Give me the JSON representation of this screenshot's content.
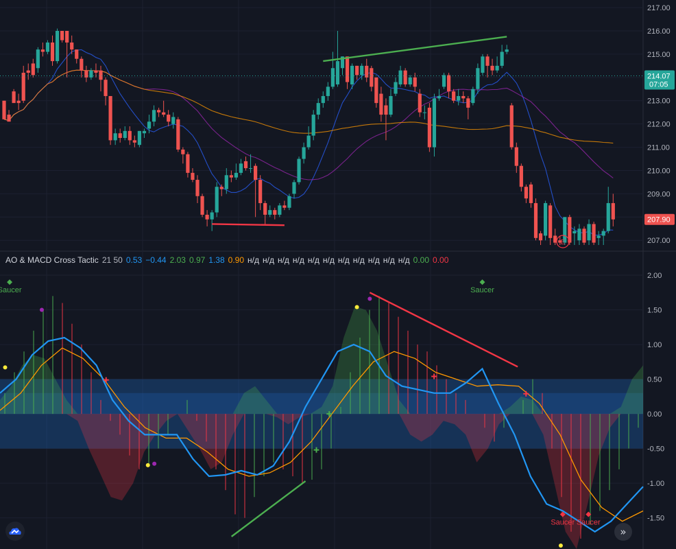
{
  "chart_data": [
    {
      "type": "candlestick",
      "price_axis": {
        "ticks": [
          "217.00",
          "216.00",
          "215.00",
          "214.00",
          "213.00",
          "212.00",
          "211.00",
          "210.00",
          "209.00",
          "208.00",
          "207.00"
        ],
        "range": [
          206.8,
          217.15
        ]
      },
      "last_price_label": {
        "price": "214.07",
        "time": "07:05"
      },
      "current_price_label": "207.90",
      "earnings_marker": "E",
      "candles": [
        [
          213.0,
          212.2,
          213.0,
          212.4
        ],
        [
          212.4,
          212.1,
          212.6,
          212.3
        ],
        [
          213.4,
          212.9,
          213.5,
          213.0
        ],
        [
          213.0,
          212.9,
          213.3,
          212.6
        ],
        [
          214.2,
          213.0,
          214.5,
          212.9
        ],
        [
          214.3,
          214.2,
          214.6,
          213.9
        ],
        [
          214.6,
          214.1,
          214.8,
          214.0
        ],
        [
          214.4,
          215.2,
          215.3,
          214.2
        ],
        [
          215.2,
          215.1,
          215.5,
          214.9
        ],
        [
          215.1,
          215.5,
          215.6,
          215.0
        ],
        [
          215.5,
          214.7,
          215.8,
          214.5
        ],
        [
          214.7,
          216.0,
          216.1,
          214.6
        ],
        [
          216.0,
          215.6,
          216.0,
          215.5
        ],
        [
          216.0,
          215.5,
          216.0,
          214.0
        ],
        [
          215.5,
          215.2,
          215.8,
          215.0
        ],
        [
          215.2,
          214.8,
          215.2,
          214.6
        ],
        [
          214.8,
          214.3,
          214.9,
          214.0
        ],
        [
          214.3,
          214.0,
          214.5,
          213.8
        ],
        [
          214.0,
          214.3,
          214.4,
          213.9
        ],
        [
          214.3,
          214.2,
          214.6,
          214.0
        ],
        [
          214.3,
          213.9,
          214.5,
          213.4
        ],
        [
          213.9,
          213.2,
          214.0,
          212.8
        ],
        [
          213.2,
          211.3,
          213.2,
          211.1
        ],
        [
          211.3,
          211.6,
          211.8,
          211.1
        ],
        [
          211.6,
          211.4,
          211.8,
          211.2
        ],
        [
          211.4,
          211.7,
          211.9,
          211.3
        ],
        [
          211.7,
          211.3,
          211.9,
          211.1
        ],
        [
          211.3,
          211.2,
          211.5,
          211.0
        ],
        [
          211.1,
          211.7,
          211.7,
          211.0
        ],
        [
          211.6,
          211.7,
          211.8,
          211.4
        ],
        [
          211.8,
          212.1,
          212.4,
          211.6
        ],
        [
          212.1,
          212.6,
          212.8,
          211.9
        ],
        [
          212.6,
          212.5,
          212.7,
          212.3
        ],
        [
          212.5,
          212.4,
          213.0,
          212.3
        ],
        [
          212.4,
          212.1,
          212.6,
          211.9
        ],
        [
          212.0,
          212.3,
          212.5,
          211.8
        ],
        [
          212.2,
          210.9,
          212.3,
          210.8
        ],
        [
          210.9,
          210.7,
          211.0,
          210.3
        ],
        [
          210.7,
          209.9,
          210.8,
          209.7
        ],
        [
          209.9,
          209.6,
          210.1,
          209.5
        ],
        [
          209.6,
          208.9,
          209.8,
          208.6
        ],
        [
          208.9,
          208.1,
          209.0,
          208.0
        ],
        [
          208.1,
          207.9,
          208.3,
          207.6
        ],
        [
          207.9,
          208.2,
          208.3,
          207.4
        ],
        [
          208.2,
          209.3,
          209.5,
          208.0
        ],
        [
          209.3,
          209.2,
          209.4,
          208.9
        ],
        [
          209.2,
          209.8,
          210.1,
          209.0
        ],
        [
          209.8,
          209.7,
          210.0,
          209.5
        ],
        [
          209.7,
          209.9,
          210.3,
          209.6
        ],
        [
          209.9,
          210.3,
          210.5,
          209.8
        ],
        [
          210.4,
          210.1,
          210.6,
          210.0
        ],
        [
          210.1,
          210.1,
          210.7,
          209.9
        ],
        [
          210.2,
          209.6,
          210.3,
          208.0
        ],
        [
          209.6,
          208.6,
          209.8,
          208.3
        ],
        [
          208.6,
          208.1,
          208.7,
          207.7
        ],
        [
          208.1,
          208.3,
          208.5,
          208.0
        ],
        [
          208.3,
          208.1,
          208.4,
          207.9
        ],
        [
          208.1,
          208.5,
          208.6,
          208.0
        ],
        [
          208.5,
          208.4,
          208.7,
          208.3
        ],
        [
          208.4,
          208.9,
          209.0,
          208.3
        ],
        [
          209.0,
          209.5,
          209.6,
          208.8
        ],
        [
          209.5,
          210.5,
          210.6,
          209.4
        ],
        [
          210.5,
          211.0,
          211.2,
          210.3
        ],
        [
          211.0,
          211.5,
          211.9,
          210.9
        ],
        [
          211.5,
          212.4,
          212.6,
          211.3
        ],
        [
          212.4,
          212.9,
          213.1,
          212.2
        ],
        [
          212.9,
          213.2,
          213.4,
          212.7
        ],
        [
          213.2,
          213.6,
          213.8,
          213.0
        ],
        [
          213.6,
          214.4,
          215.1,
          213.5
        ],
        [
          213.7,
          214.7,
          216.0,
          213.6
        ],
        [
          214.4,
          214.9,
          214.9,
          214.1
        ],
        [
          214.9,
          213.8,
          214.9,
          213.5
        ],
        [
          213.7,
          214.5,
          214.6,
          213.5
        ],
        [
          214.5,
          214.1,
          214.5,
          213.9
        ],
        [
          214.1,
          214.5,
          214.6,
          213.9
        ],
        [
          214.5,
          214.0,
          214.8,
          213.8
        ],
        [
          214.4,
          213.6,
          214.5,
          213.4
        ],
        [
          214.0,
          212.9,
          214.0,
          212.7
        ],
        [
          213.3,
          212.4,
          213.6,
          212.1
        ],
        [
          212.8,
          212.4,
          213.1,
          211.3
        ],
        [
          212.4,
          213.2,
          213.5,
          212.3
        ],
        [
          213.3,
          213.8,
          214.0,
          213.2
        ],
        [
          213.7,
          214.3,
          214.5,
          213.6
        ],
        [
          214.3,
          213.7,
          214.4,
          213.6
        ],
        [
          213.7,
          214.0,
          214.1,
          213.6
        ],
        [
          214.0,
          213.6,
          214.2,
          213.4
        ],
        [
          213.3,
          212.5,
          213.5,
          212.3
        ],
        [
          212.5,
          212.5,
          212.8,
          212.2
        ],
        [
          212.7,
          211.0,
          212.9,
          210.8
        ],
        [
          211.0,
          213.1,
          213.3,
          210.6
        ],
        [
          213.1,
          213.2,
          213.5,
          213.0
        ],
        [
          213.6,
          214.1,
          214.2,
          213.5
        ],
        [
          214.1,
          213.4,
          214.2,
          213.1
        ],
        [
          213.4,
          213.0,
          213.5,
          212.9
        ],
        [
          213.0,
          213.2,
          213.5,
          212.8
        ],
        [
          213.2,
          213.1,
          213.4,
          212.9
        ],
        [
          213.1,
          212.7,
          213.2,
          212.2
        ],
        [
          212.9,
          213.5,
          213.6,
          212.8
        ],
        [
          213.5,
          214.4,
          214.6,
          213.3
        ],
        [
          214.2,
          214.9,
          215.0,
          214.1
        ],
        [
          214.9,
          214.5,
          215.0,
          214.0
        ],
        [
          214.5,
          214.3,
          214.8,
          214.1
        ],
        [
          214.3,
          214.5,
          214.9,
          214.2
        ],
        [
          214.5,
          215.1,
          215.4,
          214.4
        ],
        [
          215.1,
          215.2,
          215.4,
          215.0
        ],
        [
          212.8,
          211.0,
          212.9,
          210.9
        ],
        [
          211.0,
          210.2,
          211.2,
          209.9
        ],
        [
          210.2,
          209.3,
          210.3,
          209.1
        ],
        [
          209.3,
          208.8,
          209.4,
          208.6
        ],
        [
          209.4,
          208.6,
          209.5,
          208.4
        ],
        [
          208.6,
          207.1,
          208.8,
          207.0
        ],
        [
          207.3,
          207.0,
          207.4,
          206.8
        ],
        [
          207.2,
          208.6,
          208.7,
          207.0
        ],
        [
          208.5,
          207.1,
          208.6,
          206.8
        ],
        [
          207.2,
          206.9,
          207.5,
          206.8
        ],
        [
          207.0,
          206.9,
          207.2,
          206.8
        ],
        [
          206.9,
          208.0,
          208.0,
          206.8
        ],
        [
          208.0,
          206.9,
          208.1,
          206.8
        ],
        [
          207.3,
          207.4,
          207.6,
          206.8
        ],
        [
          207.0,
          207.5,
          207.7,
          206.8
        ],
        [
          207.5,
          206.9,
          207.6,
          206.8
        ],
        [
          207.0,
          207.7,
          207.9,
          206.8
        ],
        [
          207.7,
          206.9,
          207.8,
          206.8
        ],
        [
          207.1,
          207.2,
          207.4,
          206.8
        ],
        [
          207.2,
          207.4,
          207.5,
          206.8
        ],
        [
          207.4,
          208.6,
          209.3,
          207.3
        ],
        [
          208.6,
          207.9,
          209.0,
          207.6
        ]
      ],
      "annotations": [
        {
          "kind": "trendline",
          "color": "#f23645",
          "points": [
            [
              43,
              207.7
            ],
            [
              58,
              207.65
            ]
          ]
        },
        {
          "kind": "trendline",
          "color": "#4caf50",
          "points": [
            [
              66,
              214.7
            ],
            [
              104,
              215.75
            ]
          ]
        }
      ]
    },
    {
      "type": "indicator",
      "title": "AO & MACD Cross Tactic",
      "params": "21 50",
      "legend_values": [
        {
          "text": "0.53",
          "color": "#2196f3"
        },
        {
          "text": "−0.44",
          "color": "#2196f3"
        },
        {
          "text": "2.03",
          "color": "#4caf50"
        },
        {
          "text": "0.97",
          "color": "#4caf50"
        },
        {
          "text": "1.38",
          "color": "#2196f3"
        },
        {
          "text": "0.90",
          "color": "#ff9800"
        },
        {
          "text": "н/д",
          "color": "#d1d4dc"
        },
        {
          "text": "н/д",
          "color": "#d1d4dc"
        },
        {
          "text": "н/д",
          "color": "#d1d4dc"
        },
        {
          "text": "н/д",
          "color": "#d1d4dc"
        },
        {
          "text": "н/д",
          "color": "#d1d4dc"
        },
        {
          "text": "н/д",
          "color": "#d1d4dc"
        },
        {
          "text": "н/д",
          "color": "#d1d4dc"
        },
        {
          "text": "н/д",
          "color": "#d1d4dc"
        },
        {
          "text": "н/д",
          "color": "#d1d4dc"
        },
        {
          "text": "н/д",
          "color": "#d1d4dc"
        },
        {
          "text": "н/д",
          "color": "#d1d4dc"
        },
        {
          "text": "0.00",
          "color": "#4caf50"
        },
        {
          "text": "0.00",
          "color": "#f23645"
        }
      ],
      "value_axis": {
        "ticks": [
          "2.00",
          "1.50",
          "1.00",
          "0.50",
          "0.00",
          "-0.50",
          "-1.00",
          "-1.50"
        ],
        "range": [
          -1.9,
          2.05
        ]
      },
      "bands": [
        {
          "from": -0.5,
          "to": 0.5
        },
        {
          "from": 0.0,
          "to": 0.3
        }
      ],
      "ao_area": [
        0.2,
        0.4,
        0.7,
        0.85,
        0.8,
        0.5,
        0.2,
        -0.1,
        -0.5,
        -0.85,
        -1.2,
        -1.25,
        -1.0,
        -0.55,
        -0.3,
        -0.1,
        0.0,
        -0.25,
        -0.5,
        -0.8,
        -0.7,
        -0.3,
        0.3,
        0.4,
        0.2,
        -0.05,
        -0.15,
        -0.05,
        0.0,
        0.1,
        0.4,
        1.1,
        1.55,
        1.5,
        1.2,
        0.7,
        0.2,
        -0.3,
        -0.4,
        -0.3,
        -0.1,
        -0.15,
        -0.3,
        -0.7,
        -0.5,
        -0.15,
        0.1,
        0.25,
        0.2,
        -0.3,
        -1.0,
        -1.7,
        -1.95,
        -1.3,
        -0.6,
        -0.2,
        0.1,
        0.5,
        0.7
      ],
      "macd": [
        0.3,
        0.5,
        0.85,
        1.05,
        1.1,
        0.95,
        0.7,
        0.2,
        -0.1,
        -0.3,
        -0.3,
        -0.3,
        -0.65,
        -0.9,
        -0.88,
        -0.82,
        -0.88,
        -0.75,
        -0.4,
        0.1,
        0.5,
        0.9,
        1.0,
        0.9,
        0.55,
        0.4,
        0.35,
        0.3,
        0.3,
        0.45,
        0.65,
        0.15,
        -0.3,
        -0.9,
        -1.3,
        -1.4,
        -1.55,
        -1.7,
        -1.55,
        -1.3,
        -1.05
      ],
      "signal": [
        0.05,
        0.3,
        0.7,
        0.95,
        0.8,
        0.5,
        0.1,
        -0.2,
        -0.35,
        -0.35,
        -0.55,
        -0.8,
        -0.9,
        -0.85,
        -0.7,
        -0.4,
        0.0,
        0.4,
        0.75,
        0.9,
        0.8,
        0.6,
        0.5,
        0.4,
        0.42,
        0.4,
        0.15,
        -0.3,
        -0.95,
        -1.35,
        -1.55,
        -1.4
      ],
      "histogram": [
        0.3,
        0.6,
        0.9,
        1.2,
        1.5,
        1.7,
        1.6,
        1.3,
        1.0,
        0.6,
        0.2,
        -0.1,
        -0.3,
        -0.6,
        -0.8,
        -0.75,
        -0.5,
        -0.3,
        0.0,
        0.2,
        -0.1,
        -0.4,
        -0.8,
        -1.1,
        -1.45,
        -1.5,
        -1.2,
        -0.9,
        -0.7,
        -0.8,
        -0.9,
        -1.0,
        -0.95,
        -0.8,
        -0.5,
        0.1,
        0.6,
        1.1,
        1.5,
        1.7,
        1.6,
        1.4,
        1.2,
        1.0,
        0.9,
        0.7,
        0.5,
        0.3,
        0.2,
        0.0,
        -0.2,
        -0.4,
        -0.2,
        0.0,
        0.2,
        0.5,
        0.3,
        -0.5,
        -1.2,
        -1.7,
        -1.8,
        -1.6,
        -1.4,
        -1.1,
        -0.8,
        -0.5,
        -0.2
      ],
      "markers": [
        {
          "kind": "diamond",
          "color": "#4caf50",
          "label": "Saucer",
          "x": 0.015,
          "y": 1.9
        },
        {
          "kind": "diamond",
          "color": "#4caf50",
          "label": "Saucer",
          "x": 0.75,
          "y": 1.9
        },
        {
          "kind": "diamond",
          "color": "#f23645",
          "label": "Saucer",
          "x": 0.875,
          "y": -1.45
        },
        {
          "kind": "diamond",
          "color": "#f23645",
          "label": "Saucer",
          "x": 0.915,
          "y": -1.45
        },
        {
          "kind": "dot",
          "color": "#9c27b0",
          "x": 0.065,
          "y": 1.5
        },
        {
          "kind": "dot",
          "color": "#ffeb3b",
          "x": 0.008,
          "y": 0.67
        },
        {
          "kind": "dot",
          "color": "#9c27b0",
          "x": 0.24,
          "y": -0.72
        },
        {
          "kind": "dot",
          "color": "#ffeb3b",
          "x": 0.23,
          "y": -0.74
        },
        {
          "kind": "dot",
          "color": "#9c27b0",
          "x": 0.575,
          "y": 1.66
        },
        {
          "kind": "dot",
          "color": "#ffeb3b",
          "x": 0.555,
          "y": 1.54
        },
        {
          "kind": "dot",
          "color": "#ffeb3b",
          "x": 0.872,
          "y": -1.9
        },
        {
          "kind": "cross",
          "color": "#f23645",
          "x": 0.165,
          "y": 0.49
        },
        {
          "kind": "cross",
          "color": "#f23645",
          "x": 0.675,
          "y": 0.54
        },
        {
          "kind": "cross",
          "color": "#f23645",
          "x": 0.818,
          "y": 0.29
        },
        {
          "kind": "cross",
          "color": "#4caf50",
          "x": 0.492,
          "y": -0.52
        },
        {
          "kind": "cross",
          "color": "#4caf50",
          "x": 0.512,
          "y": 0.0
        }
      ],
      "trendlines": [
        {
          "color": "#4caf50",
          "points": [
            [
              0.36,
              -1.77
            ],
            [
              0.475,
              -0.97
            ]
          ]
        },
        {
          "color": "#f23645",
          "points": [
            [
              0.575,
              1.75
            ],
            [
              0.805,
              0.68
            ]
          ]
        }
      ]
    }
  ],
  "ui": {
    "goto_icon": "»",
    "logo_icon": "cloud-logo-icon"
  }
}
